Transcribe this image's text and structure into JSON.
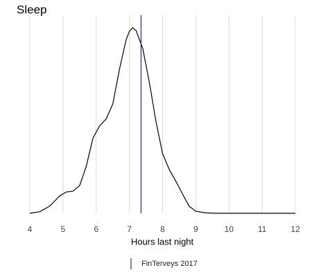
{
  "chart_data": {
    "type": "density",
    "title": "Sleep",
    "x_label": "Hours last night",
    "x": [
      4.0,
      4.3,
      4.6,
      4.9,
      5.1,
      5.3,
      5.5,
      5.7,
      5.9,
      6.1,
      6.3,
      6.5,
      6.7,
      6.9,
      7.0,
      7.1,
      7.2,
      7.4,
      7.6,
      7.8,
      8.0,
      8.2,
      8.4,
      8.6,
      8.8,
      9.0,
      9.3,
      9.6,
      12.0
    ],
    "values": [
      0,
      0.004,
      0.018,
      0.044,
      0.054,
      0.056,
      0.07,
      0.119,
      0.19,
      0.221,
      0.239,
      0.277,
      0.365,
      0.439,
      0.461,
      0.47,
      0.463,
      0.418,
      0.333,
      0.233,
      0.151,
      0.111,
      0.081,
      0.049,
      0.018,
      0.005,
      0.001,
      0,
      0
    ],
    "color": "#000000",
    "xlim": [
      4,
      12
    ],
    "xticks": [
      4,
      5,
      6,
      7,
      8,
      9,
      10,
      11,
      12
    ],
    "ylim": [
      0,
      0.5
    ],
    "grid": true,
    "reference_lines": [
      {
        "name": "FinTerveys 2017",
        "value": 7.35,
        "color": "#000080"
      }
    ],
    "legend": "bottom"
  }
}
